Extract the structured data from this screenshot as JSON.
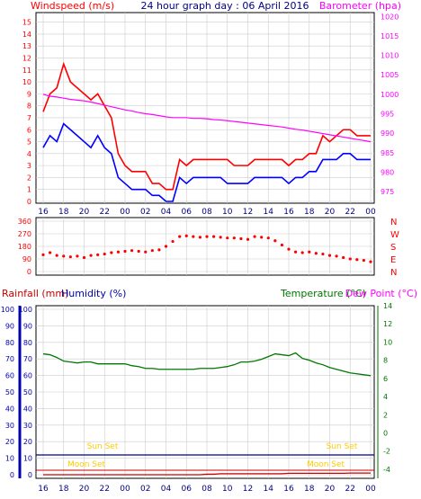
{
  "header": {
    "left_title": "Windspeed (m/s)",
    "center_title": "24 hour graph day : 06 April 2016",
    "right_title": "Barometer (hpa)"
  },
  "lower_header": {
    "rainfall_label": "Rainfall (mm)",
    "humidity_label": "Humidity (%)",
    "temperature_label": "Temperature (°C)",
    "dewpoint_label": "Dew Point (°C)"
  },
  "colors": {
    "wind_gust": "#ff0000",
    "wind_avg": "#0000ff",
    "barometer": "#ff00ff",
    "direction": "#ff0000",
    "temperature": "#007700",
    "rain": "#cc0000",
    "humidity_axis": "#0000aa",
    "sun_text": "#ffcc00",
    "moon_text": "#ffcc00",
    "sun_line": "#000088",
    "moon_line": "#cc0000",
    "grid": "#cccccc"
  },
  "x_tick_labels": [
    "16",
    "18",
    "20",
    "22",
    "00",
    "02",
    "04",
    "06",
    "08",
    "10",
    "12",
    "14",
    "16",
    "18",
    "20",
    "22",
    "00"
  ],
  "chart_data": [
    {
      "type": "line",
      "name": "wind",
      "y_left_ticks": [
        "15",
        "14",
        "13",
        "12",
        "11",
        "10",
        "9",
        "8",
        "7",
        "6",
        "5",
        "4",
        "3",
        "2",
        "1",
        "0"
      ],
      "y_right_ticks": [
        "1020",
        "1015",
        "1010",
        "1005",
        "1000",
        "995",
        "990",
        "985",
        "980",
        "975"
      ],
      "ylim_left": [
        0,
        15.5
      ],
      "ylim_right": [
        972,
        1021
      ],
      "x_hours": [
        0,
        0.5,
        1,
        1.5,
        2,
        2.5,
        3,
        3.5,
        4,
        4.5,
        5,
        5.5,
        6,
        6.5,
        7,
        7.5,
        8,
        8.5,
        9,
        9.5,
        10,
        10.5,
        11,
        11.5,
        12,
        12.5,
        13,
        13.5,
        14,
        14.5,
        15,
        15.5,
        16,
        16.5,
        17,
        17.5,
        18,
        18.5,
        19,
        19.5,
        20,
        20.5,
        21,
        21.5,
        22,
        22.5,
        23,
        23.5,
        24
      ],
      "series": [
        {
          "key": "gust",
          "values": [
            7.5,
            9,
            9.5,
            11.5,
            10,
            9.5,
            9,
            8.5,
            9,
            8,
            7,
            4,
            3,
            2.5,
            2.5,
            2.5,
            1.5,
            1.5,
            1,
            1,
            3.5,
            3,
            3.5,
            3.5,
            3.5,
            3.5,
            3.5,
            3.5,
            3,
            3,
            3,
            3.5,
            3.5,
            3.5,
            3.5,
            3.5,
            3,
            3.5,
            3.5,
            4,
            4,
            5.5,
            5,
            5.5,
            6,
            6,
            5.5,
            5.5,
            5.5
          ]
        },
        {
          "key": "avg",
          "values": [
            4.5,
            5.5,
            5,
            6.5,
            6,
            5.5,
            5,
            4.5,
            5.5,
            4.5,
            4,
            2,
            1.5,
            1,
            1,
            1,
            0.5,
            0.5,
            0,
            0,
            2,
            1.5,
            2,
            2,
            2,
            2,
            2,
            1.5,
            1.5,
            1.5,
            1.5,
            2,
            2,
            2,
            2,
            2,
            1.5,
            2,
            2,
            2.5,
            2.5,
            3.5,
            3.5,
            3.5,
            4,
            4,
            3.5,
            3.5,
            3.5
          ]
        },
        {
          "key": "barometer",
          "values": [
            1000,
            999.5,
            999.3,
            999,
            998.7,
            998.5,
            998.3,
            998,
            997.6,
            997.2,
            996.8,
            996.4,
            996,
            995.7,
            995.3,
            995,
            994.8,
            994.5,
            994.2,
            994,
            994,
            994,
            993.8,
            993.8,
            993.7,
            993.5,
            993.4,
            993.2,
            993,
            992.8,
            992.6,
            992.4,
            992.2,
            992,
            991.8,
            991.6,
            991.3,
            991,
            990.8,
            990.5,
            990.2,
            989.9,
            989.6,
            989.3,
            989,
            988.7,
            988.4,
            988.1,
            987.8
          ]
        }
      ]
    },
    {
      "type": "scatter",
      "name": "wind_direction",
      "y_left_ticks": [
        "360",
        "270",
        "180",
        "90",
        "0"
      ],
      "y_right_ticks": [
        "N",
        "W",
        "S",
        "E",
        "N"
      ],
      "ylim": [
        0,
        360
      ],
      "x_hours": [
        0,
        0.5,
        1,
        1.5,
        2,
        2.5,
        3,
        3.5,
        4,
        4.5,
        5,
        5.5,
        6,
        6.5,
        7,
        7.5,
        8,
        8.5,
        9,
        9.5,
        10,
        10.5,
        11,
        11.5,
        12,
        12.5,
        13,
        13.5,
        14,
        14.5,
        15,
        15.5,
        16,
        16.5,
        17,
        17.5,
        18,
        18.5,
        19,
        19.5,
        20,
        20.5,
        21,
        21.5,
        22,
        22.5,
        23,
        23.5,
        24
      ],
      "values": [
        120,
        135,
        115,
        110,
        105,
        110,
        100,
        115,
        120,
        125,
        135,
        140,
        145,
        150,
        145,
        140,
        150,
        155,
        180,
        215,
        250,
        255,
        250,
        245,
        250,
        250,
        245,
        240,
        240,
        235,
        230,
        250,
        245,
        240,
        220,
        190,
        160,
        140,
        135,
        140,
        130,
        125,
        115,
        110,
        100,
        90,
        85,
        80,
        70
      ]
    },
    {
      "type": "line",
      "name": "rain_humidity_temperature",
      "y_left_ticks": [
        "100",
        "90",
        "80",
        "70",
        "60",
        "50",
        "40",
        "30",
        "20",
        "10",
        "0"
      ],
      "y_right_ticks": [
        "14",
        "12",
        "10",
        "8",
        "6",
        "4",
        "2",
        "0",
        "-2",
        "-4"
      ],
      "ylim_left": [
        0,
        100
      ],
      "ylim_right": [
        -5,
        14
      ],
      "sun_set_label": "Sun Set",
      "moon_set_label": "Moon Set",
      "x_hours": [
        0,
        0.5,
        1,
        1.5,
        2,
        2.5,
        3,
        3.5,
        4,
        4.5,
        5,
        5.5,
        6,
        6.5,
        7,
        7.5,
        8,
        8.5,
        9,
        9.5,
        10,
        10.5,
        11,
        11.5,
        12,
        12.5,
        13,
        13.5,
        14,
        14.5,
        15,
        15.5,
        16,
        16.5,
        17,
        17.5,
        18,
        18.5,
        19,
        19.5,
        20,
        20.5,
        21,
        21.5,
        22,
        22.5,
        23,
        23.5,
        24
      ],
      "series": [
        {
          "key": "temperature",
          "values": [
            8.7,
            8.6,
            8.3,
            7.9,
            7.8,
            7.7,
            7.8,
            7.8,
            7.6,
            7.6,
            7.6,
            7.6,
            7.6,
            7.4,
            7.3,
            7.1,
            7.1,
            7,
            7,
            7,
            7,
            7,
            7,
            7.1,
            7.1,
            7.1,
            7.2,
            7.3,
            7.5,
            7.8,
            7.8,
            7.9,
            8.1,
            8.4,
            8.7,
            8.6,
            8.5,
            8.8,
            8.2,
            8,
            7.7,
            7.5,
            7.2,
            7,
            6.8,
            6.6,
            6.5,
            6.4,
            6.3
          ]
        },
        {
          "key": "rain",
          "values": [
            0,
            0,
            0,
            0,
            0,
            0,
            0,
            0,
            0,
            0,
            0,
            0,
            0,
            0,
            0,
            0,
            0,
            0,
            0,
            0,
            0,
            0,
            0,
            0,
            0.3,
            0.3,
            0.6,
            0.6,
            0.6,
            0.6,
            0.6,
            0.6,
            0.6,
            0.6,
            0.6,
            0.6,
            0.9,
            0.9,
            0.9,
            0.9,
            0.9,
            0.9,
            0.9,
            0.9,
            0.9,
            1,
            1,
            1,
            1
          ]
        }
      ]
    }
  ]
}
